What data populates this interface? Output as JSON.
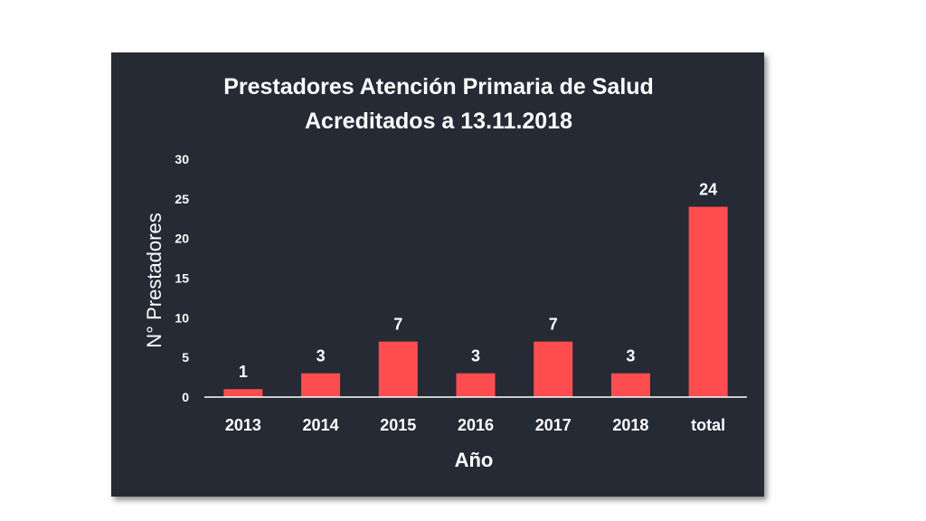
{
  "chart_data": {
    "type": "bar",
    "title": "Prestadores Atención Primaria de Salud",
    "subtitle": "Acreditados a 13.11.2018",
    "xlabel": "Año",
    "ylabel": "N° Prestadores",
    "categories": [
      "2013",
      "2014",
      "2015",
      "2016",
      "2017",
      "2018",
      "total"
    ],
    "values": [
      1,
      3,
      7,
      3,
      7,
      3,
      24
    ],
    "ylim": [
      0,
      30
    ],
    "yticks": [
      0,
      5,
      10,
      15,
      20,
      25,
      30
    ],
    "grid": false,
    "legend": "none",
    "bar_color": "#ff4d4f",
    "background_color": "#252a35"
  }
}
